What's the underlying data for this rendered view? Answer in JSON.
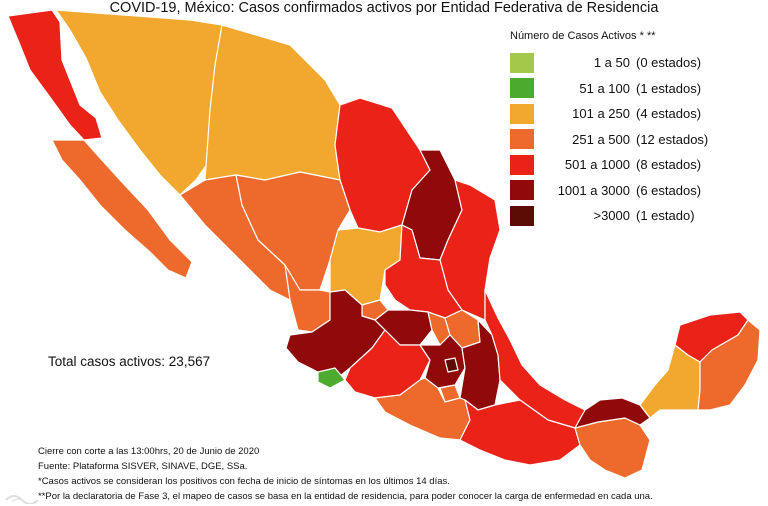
{
  "title": "COVID-19, México: Casos confirmados activos por Entidad Federativa de Residencia",
  "legend": {
    "title": "Número de Casos Activos * **",
    "items": [
      {
        "range": "1 a 50",
        "count": "(0 estados)",
        "color": "#a3c84a"
      },
      {
        "range": "51 a 100",
        "count": "(1 estados)",
        "color": "#4caa2e"
      },
      {
        "range": "101 a 250",
        "count": "(4 estados)",
        "color": "#f2a72e"
      },
      {
        "range": "251 a 500",
        "count": "(12 estados)",
        "color": "#ee6a2c"
      },
      {
        "range": "501 a 1000",
        "count": "(8 estados)",
        "color": "#ea2218"
      },
      {
        "range": "1001 a 3000",
        "count": "(6 estados)",
        "color": "#900a09"
      },
      {
        "range": ">3000",
        "count": "(1 estado)",
        "color": "#5c0c05"
      }
    ]
  },
  "total": "Total casos activos: 23,567",
  "notes": [
    "Cierre con corte a las 13:00hrs, 20 de Junio de 2020",
    "Fuente: Plataforma SISVER, SINAVE, DGE, SSa.",
    "*Casos activos se consideran los positivos con fecha de inicio de síntomas en los últimos 14 días.",
    "**Por la declaratoria de Fase 3, el mapeo de casos se basa en la entidad de residencia, para poder conocer la carga de enfermedad en cada una."
  ]
}
